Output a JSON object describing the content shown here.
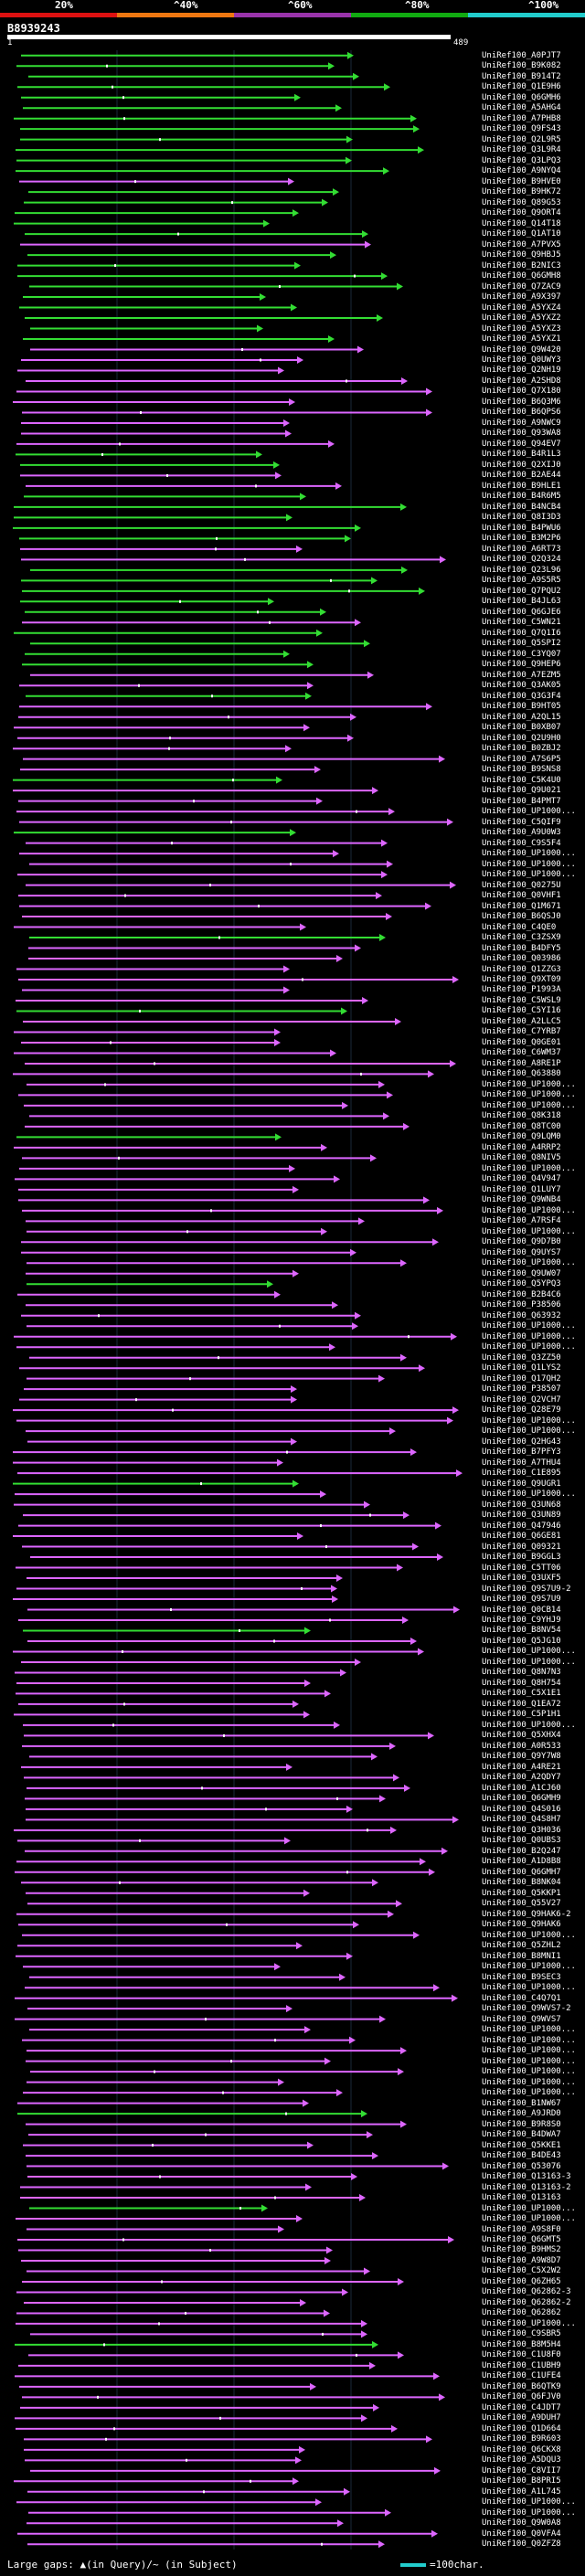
{
  "header": {
    "identity_scale": [
      {
        "label": "20%",
        "color": "#dd1111"
      },
      {
        "label": "^40%",
        "color": "#ee7711"
      },
      {
        "label": "^60%",
        "color": "#9933aa"
      },
      {
        "label": "^80%",
        "color": "#11aa11"
      },
      {
        "label": "^100%",
        "color": "#22cccc"
      }
    ]
  },
  "query": {
    "id": "B8939243",
    "start": "1",
    "end": "489"
  },
  "hits": [
    {
      "id": "UniRef100_A0PJT7",
      "color": "green"
    },
    {
      "id": "UniRef100_B9K082",
      "color": "green"
    },
    {
      "id": "UniRef100_B914T2",
      "color": "green"
    },
    {
      "id": "UniRef100_Q1E9H6",
      "color": "green"
    },
    {
      "id": "UniRef100_Q6GMH6",
      "color": "green"
    },
    {
      "id": "UniRef100_A5AHG4",
      "color": "green"
    },
    {
      "id": "UniRef100_A7PHB8",
      "color": "green"
    },
    {
      "id": "UniRef100_Q9FS43",
      "color": "green"
    },
    {
      "id": "UniRef100_Q2L9R5",
      "color": "green"
    },
    {
      "id": "UniRef100_Q3L9R4",
      "color": "green"
    },
    {
      "id": "UniRef100_Q3LPQ3",
      "color": "green"
    },
    {
      "id": "UniRef100_A9NYQ4",
      "color": "green"
    },
    {
      "id": "UniRef100_B9HVE0",
      "color": "magenta"
    },
    {
      "id": "UniRef100_B9HK72",
      "color": "green"
    },
    {
      "id": "UniRef100_Q89G53",
      "color": "green"
    },
    {
      "id": "UniRef100_Q9ORT4",
      "color": "green"
    },
    {
      "id": "UniRef100_Q14T18",
      "color": "green"
    },
    {
      "id": "UniRef100_Q1AT10",
      "color": "green"
    },
    {
      "id": "UniRef100_A7PVX5",
      "color": "magenta"
    },
    {
      "id": "UniRef100_Q9HBJ5",
      "color": "green"
    },
    {
      "id": "UniRef100_B2NIC3",
      "color": "green"
    },
    {
      "id": "UniRef100_Q6GMH8",
      "color": "green"
    },
    {
      "id": "UniRef100_Q7ZAC9",
      "color": "green"
    },
    {
      "id": "UniRef100_A9X397",
      "color": "green"
    },
    {
      "id": "UniRef100_A5YXZ4",
      "color": "green"
    },
    {
      "id": "UniRef100_A5YXZ2",
      "color": "green"
    },
    {
      "id": "UniRef100_A5YXZ3",
      "color": "green"
    },
    {
      "id": "UniRef100_A5YXZ1",
      "color": "green"
    },
    {
      "id": "UniRef100_Q9W420",
      "color": "magenta"
    },
    {
      "id": "UniRef100_Q0UWY3",
      "color": "magenta"
    },
    {
      "id": "UniRef100_Q2NH19",
      "color": "magenta"
    },
    {
      "id": "UniRef100_A2SHD8",
      "color": "magenta"
    },
    {
      "id": "UniRef100_Q7X180",
      "color": "magenta"
    },
    {
      "id": "UniRef100_B6Q3M6",
      "color": "magenta"
    },
    {
      "id": "UniRef100_B6QPS6",
      "color": "magenta"
    },
    {
      "id": "UniRef100_A9NWC9",
      "color": "magenta"
    },
    {
      "id": "UniRef100_Q93WA8",
      "color": "magenta"
    },
    {
      "id": "UniRef100_Q94EV7",
      "color": "magenta"
    },
    {
      "id": "UniRef100_B4R1L3",
      "color": "green"
    },
    {
      "id": "UniRef100_Q2XIJ0",
      "color": "green"
    },
    {
      "id": "UniRef100_B2AE44",
      "color": "magenta"
    },
    {
      "id": "UniRef100_B9HLE1",
      "color": "magenta"
    },
    {
      "id": "UniRef100_B4R6M5",
      "color": "green"
    },
    {
      "id": "UniRef100_B4NCB4",
      "color": "green"
    },
    {
      "id": "UniRef100_Q8I3D3",
      "color": "green"
    },
    {
      "id": "UniRef100_B4PWU6",
      "color": "green"
    },
    {
      "id": "UniRef100_B3M2P6",
      "color": "green"
    },
    {
      "id": "UniRef100_A6RT73",
      "color": "magenta"
    },
    {
      "id": "UniRef100_Q2Q324",
      "color": "magenta"
    },
    {
      "id": "UniRef100_Q23L96",
      "color": "green"
    },
    {
      "id": "UniRef100_A9S5R5",
      "color": "green"
    },
    {
      "id": "UniRef100_Q7PQU2",
      "color": "green"
    },
    {
      "id": "UniRef100_B4JL63",
      "color": "green"
    },
    {
      "id": "UniRef100_Q6GJE6",
      "color": "green"
    },
    {
      "id": "UniRef100_C5WN21",
      "color": "magenta"
    },
    {
      "id": "UniRef100_Q7Q1I6",
      "color": "green"
    },
    {
      "id": "UniRef100_Q5SPI2",
      "color": "green"
    },
    {
      "id": "UniRef100_C3YQ07",
      "color": "green"
    },
    {
      "id": "UniRef100_Q9HEP6",
      "color": "green"
    },
    {
      "id": "UniRef100_A7EZM5",
      "color": "magenta"
    },
    {
      "id": "UniRef100_Q3AK05",
      "color": "magenta"
    },
    {
      "id": "UniRef100_Q3G3F4",
      "color": "green"
    },
    {
      "id": "UniRef100_B9HT05",
      "color": "magenta"
    },
    {
      "id": "UniRef100_A2QL15",
      "color": "magenta"
    },
    {
      "id": "UniRef100_B0XB07",
      "color": "magenta"
    },
    {
      "id": "UniRef100_Q2U9H0",
      "color": "magenta"
    },
    {
      "id": "UniRef100_B0ZBJ2",
      "color": "magenta"
    },
    {
      "id": "UniRef100_A7S6P5",
      "color": "magenta"
    },
    {
      "id": "UniRef100_B9SNS8",
      "color": "magenta"
    },
    {
      "id": "UniRef100_C5K4U0",
      "color": "green"
    },
    {
      "id": "UniRef100_Q9U021",
      "color": "magenta"
    },
    {
      "id": "UniRef100_B4PMT7",
      "color": "magenta"
    },
    {
      "id": "UniRef100_UP1000...",
      "color": "magenta"
    },
    {
      "id": "UniRef100_C5QIF9",
      "color": "magenta"
    },
    {
      "id": "UniRef100_A9U0W3",
      "color": "green"
    },
    {
      "id": "UniRef100_C9S5F4",
      "color": "magenta"
    },
    {
      "id": "UniRef100_UP1000...",
      "color": "magenta"
    },
    {
      "id": "UniRef100_UP1000...",
      "color": "magenta"
    },
    {
      "id": "UniRef100_UP1000...",
      "color": "magenta"
    },
    {
      "id": "UniRef100_Q0275U",
      "color": "magenta"
    },
    {
      "id": "UniRef100_Q0VHF1",
      "color": "magenta"
    },
    {
      "id": "UniRef100_Q1M671",
      "color": "magenta"
    },
    {
      "id": "UniRef100_B6QSJ0",
      "color": "magenta"
    },
    {
      "id": "UniRef100_C4QE0",
      "color": "magenta"
    },
    {
      "id": "UniRef100_C3ZSX9",
      "color": "green"
    },
    {
      "id": "UniRef100_B4DFY5",
      "color": "magenta"
    },
    {
      "id": "UniRef100_Q03986",
      "color": "magenta"
    },
    {
      "id": "UniRef100_Q1ZZG3",
      "color": "magenta"
    },
    {
      "id": "UniRef100_Q9XT09",
      "color": "magenta"
    },
    {
      "id": "UniRef100_P1993A",
      "color": "magenta"
    },
    {
      "id": "UniRef100_C5WSL9",
      "color": "magenta"
    },
    {
      "id": "UniRef100_C5YI16",
      "color": "green"
    },
    {
      "id": "UniRef100_A2LLC5",
      "color": "magenta"
    },
    {
      "id": "UniRef100_C7YRB7",
      "color": "magenta"
    },
    {
      "id": "UniRef100_Q0GE01",
      "color": "magenta"
    },
    {
      "id": "UniRef100_C6WM37",
      "color": "magenta"
    },
    {
      "id": "UniRef100_A8RE1P",
      "color": "magenta"
    },
    {
      "id": "UniRef100_Q63880",
      "color": "magenta"
    },
    {
      "id": "UniRef100_UP1000...",
      "color": "magenta"
    },
    {
      "id": "UniRef100_UP1000...",
      "color": "magenta"
    },
    {
      "id": "UniRef100_UP1000...",
      "color": "magenta"
    },
    {
      "id": "UniRef100_Q8K318",
      "color": "magenta"
    },
    {
      "id": "UniRef100_Q8TC00",
      "color": "magenta"
    },
    {
      "id": "UniRef100_Q9LQM0",
      "color": "green"
    },
    {
      "id": "UniRef100_A4RRP2",
      "color": "magenta"
    },
    {
      "id": "UniRef100_Q8NIV5",
      "color": "magenta"
    },
    {
      "id": "UniRef100_UP1000...",
      "color": "magenta"
    },
    {
      "id": "UniRef100_Q4V947",
      "color": "magenta"
    },
    {
      "id": "UniRef100_Q1LUY7",
      "color": "magenta"
    },
    {
      "id": "UniRef100_Q9WNB4",
      "color": "magenta"
    },
    {
      "id": "UniRef100_UP1000...",
      "color": "magenta"
    },
    {
      "id": "UniRef100_A7RSF4",
      "color": "magenta"
    },
    {
      "id": "UniRef100_UP1000...",
      "color": "magenta"
    },
    {
      "id": "UniRef100_Q9D7B0",
      "color": "magenta"
    },
    {
      "id": "UniRef100_Q9UYS7",
      "color": "magenta"
    },
    {
      "id": "UniRef100_UP1000...",
      "color": "magenta"
    },
    {
      "id": "UniRef100_Q9UW07",
      "color": "magenta"
    },
    {
      "id": "UniRef100_Q5YPQ3",
      "color": "green"
    },
    {
      "id": "UniRef100_B2B4C6",
      "color": "magenta"
    },
    {
      "id": "UniRef100_P38506",
      "color": "magenta"
    },
    {
      "id": "UniRef100_Q63932",
      "color": "magenta"
    },
    {
      "id": "UniRef100_UP1000...",
      "color": "magenta"
    },
    {
      "id": "UniRef100_UP1000...",
      "color": "magenta"
    },
    {
      "id": "UniRef100_UP1000...",
      "color": "magenta"
    },
    {
      "id": "UniRef100_Q3ZZ50",
      "color": "magenta"
    },
    {
      "id": "UniRef100_Q1LYS2",
      "color": "magenta"
    },
    {
      "id": "UniRef100_Q17QH2",
      "color": "magenta"
    },
    {
      "id": "UniRef100_P38507",
      "color": "magenta"
    },
    {
      "id": "UniRef100_Q2VCH7",
      "color": "magenta"
    },
    {
      "id": "UniRef100_Q28E79",
      "color": "magenta"
    },
    {
      "id": "UniRef100_UP1000...",
      "color": "magenta"
    },
    {
      "id": "UniRef100_UP1000...",
      "color": "magenta"
    },
    {
      "id": "UniRef100_Q2HG43",
      "color": "magenta"
    },
    {
      "id": "UniRef100_B7PFY3",
      "color": "magenta"
    },
    {
      "id": "UniRef100_A7THU4",
      "color": "magenta"
    },
    {
      "id": "UniRef100_C1E895",
      "color": "magenta"
    },
    {
      "id": "UniRef100_Q9UGR1",
      "color": "green"
    },
    {
      "id": "UniRef100_UP1000...",
      "color": "magenta"
    },
    {
      "id": "UniRef100_Q3UN68",
      "color": "magenta"
    },
    {
      "id": "UniRef100_Q3UN89",
      "color": "magenta"
    },
    {
      "id": "UniRef100_Q47946",
      "color": "magenta"
    },
    {
      "id": "UniRef100_Q6GE81",
      "color": "magenta"
    },
    {
      "id": "UniRef100_Q09321",
      "color": "magenta"
    },
    {
      "id": "UniRef100_B9GGL3",
      "color": "magenta"
    },
    {
      "id": "UniRef100_C5TT06",
      "color": "magenta"
    },
    {
      "id": "UniRef100_Q3UXF5",
      "color": "magenta"
    },
    {
      "id": "UniRef100_Q9S7U9-2",
      "color": "magenta"
    },
    {
      "id": "UniRef100_Q9S7U9",
      "color": "magenta"
    },
    {
      "id": "UniRef100_Q0CB14",
      "color": "magenta"
    },
    {
      "id": "UniRef100_C9YHJ9",
      "color": "magenta"
    },
    {
      "id": "UniRef100_B8NV54",
      "color": "green"
    },
    {
      "id": "UniRef100_Q5JG10",
      "color": "magenta"
    },
    {
      "id": "UniRef100_UP1000...",
      "color": "magenta"
    },
    {
      "id": "UniRef100_UP1000...",
      "color": "magenta"
    },
    {
      "id": "UniRef100_Q8N7N3",
      "color": "magenta"
    },
    {
      "id": "UniRef100_Q8H754",
      "color": "magenta"
    },
    {
      "id": "UniRef100_C5X1E1",
      "color": "magenta"
    },
    {
      "id": "UniRef100_Q1EA72",
      "color": "magenta"
    },
    {
      "id": "UniRef100_C5P1H1",
      "color": "magenta"
    },
    {
      "id": "UniRef100_UP1000...",
      "color": "magenta"
    },
    {
      "id": "UniRef100_Q5XHX4",
      "color": "magenta"
    },
    {
      "id": "UniRef100_A0R533",
      "color": "magenta"
    },
    {
      "id": "UniRef100_Q9Y7W8",
      "color": "magenta"
    },
    {
      "id": "UniRef100_A4RE21",
      "color": "magenta"
    },
    {
      "id": "UniRef100_A2QDY7",
      "color": "magenta"
    },
    {
      "id": "UniRef100_A1CJ60",
      "color": "magenta"
    },
    {
      "id": "UniRef100_Q6GMH9",
      "color": "magenta"
    },
    {
      "id": "UniRef100_Q4S016",
      "color": "magenta"
    },
    {
      "id": "UniRef100_Q4S8H7",
      "color": "magenta"
    },
    {
      "id": "UniRef100_Q3H036",
      "color": "magenta"
    },
    {
      "id": "UniRef100_Q0UBS3",
      "color": "magenta"
    },
    {
      "id": "UniRef100_B2Q247",
      "color": "magenta"
    },
    {
      "id": "UniRef100_A1D8B8",
      "color": "magenta"
    },
    {
      "id": "UniRef100_Q6GMH7",
      "color": "magenta"
    },
    {
      "id": "UniRef100_B8NK04",
      "color": "magenta"
    },
    {
      "id": "UniRef100_Q5KKP1",
      "color": "magenta"
    },
    {
      "id": "UniRef100_Q55V27",
      "color": "magenta"
    },
    {
      "id": "UniRef100_Q9HAK6-2",
      "color": "magenta"
    },
    {
      "id": "UniRef100_Q9HAK6",
      "color": "magenta"
    },
    {
      "id": "UniRef100_UP1000...",
      "color": "magenta"
    },
    {
      "id": "UniRef100_Q5ZHL2",
      "color": "magenta"
    },
    {
      "id": "UniRef100_B8MNI1",
      "color": "magenta"
    },
    {
      "id": "UniRef100_UP1000...",
      "color": "magenta"
    },
    {
      "id": "UniRef100_B9SEC3",
      "color": "magenta"
    },
    {
      "id": "UniRef100_UP1000...",
      "color": "magenta"
    },
    {
      "id": "UniRef100_C4Q7Q1",
      "color": "magenta"
    },
    {
      "id": "UniRef100_Q9WVS7-2",
      "color": "magenta"
    },
    {
      "id": "UniRef100_Q9WVS7",
      "color": "magenta"
    },
    {
      "id": "UniRef100_UP1000...",
      "color": "magenta"
    },
    {
      "id": "UniRef100_UP1000...",
      "color": "magenta"
    },
    {
      "id": "UniRef100_UP1000...",
      "color": "magenta"
    },
    {
      "id": "UniRef100_UP1000...",
      "color": "magenta"
    },
    {
      "id": "UniRef100_UP1000...",
      "color": "magenta"
    },
    {
      "id": "UniRef100_UP1000...",
      "color": "magenta"
    },
    {
      "id": "UniRef100_UP1000...",
      "color": "magenta"
    },
    {
      "id": "UniRef100_B1NW67",
      "color": "magenta"
    },
    {
      "id": "UniRef100_A9JRD0",
      "color": "green"
    },
    {
      "id": "UniRef100_B9R8S0",
      "color": "magenta"
    },
    {
      "id": "UniRef100_B4DWA7",
      "color": "magenta"
    },
    {
      "id": "UniRef100_Q5KKE1",
      "color": "magenta"
    },
    {
      "id": "UniRef100_B4DE43",
      "color": "magenta"
    },
    {
      "id": "UniRef100_Q53076",
      "color": "magenta"
    },
    {
      "id": "UniRef100_Q13163-3",
      "color": "magenta"
    },
    {
      "id": "UniRef100_Q13163-2",
      "color": "magenta"
    },
    {
      "id": "UniRef100_Q13163",
      "color": "magenta"
    },
    {
      "id": "UniRef100_UP1000...",
      "color": "green"
    },
    {
      "id": "UniRef100_UP1000...",
      "color": "magenta"
    },
    {
      "id": "UniRef100_A9S8F0",
      "color": "magenta"
    },
    {
      "id": "UniRef100_Q6GMT5",
      "color": "magenta"
    },
    {
      "id": "UniRef100_B9HMS2",
      "color": "magenta"
    },
    {
      "id": "UniRef100_A9W8D7",
      "color": "magenta"
    },
    {
      "id": "UniRef100_C5X2W2",
      "color": "magenta"
    },
    {
      "id": "UniRef100_Q6ZH65",
      "color": "magenta"
    },
    {
      "id": "UniRef100_Q62862-3",
      "color": "magenta"
    },
    {
      "id": "UniRef100_Q62862-2",
      "color": "magenta"
    },
    {
      "id": "UniRef100_Q62862",
      "color": "magenta"
    },
    {
      "id": "UniRef100_UP1000...",
      "color": "magenta"
    },
    {
      "id": "UniRef100_C9SBR5",
      "color": "magenta"
    },
    {
      "id": "UniRef100_B8M5H4",
      "color": "green"
    },
    {
      "id": "UniRef100_C1U8F0",
      "color": "magenta"
    },
    {
      "id": "UniRef100_C1UBH9",
      "color": "magenta"
    },
    {
      "id": "UniRef100_C1UFE4",
      "color": "magenta"
    },
    {
      "id": "UniRef100_B6QTK9",
      "color": "magenta"
    },
    {
      "id": "UniRef100_Q6FJV0",
      "color": "magenta"
    },
    {
      "id": "UniRef100_C4JDT7",
      "color": "magenta"
    },
    {
      "id": "UniRef100_A9DUH7",
      "color": "magenta"
    },
    {
      "id": "UniRef100_Q1D664",
      "color": "magenta"
    },
    {
      "id": "UniRef100_B9R603",
      "color": "magenta"
    },
    {
      "id": "UniRef100_Q6CKX8",
      "color": "magenta"
    },
    {
      "id": "UniRef100_A5DQU3",
      "color": "magenta"
    },
    {
      "id": "UniRef100_C8VII7",
      "color": "magenta"
    },
    {
      "id": "UniRef100_B8PRI5",
      "color": "magenta"
    },
    {
      "id": "UniRef100_A1L745",
      "color": "magenta"
    },
    {
      "id": "UniRef100_UP1000...",
      "color": "magenta"
    },
    {
      "id": "UniRef100_UP1000...",
      "color": "magenta"
    },
    {
      "id": "UniRef100_Q9W0A8",
      "color": "magenta"
    },
    {
      "id": "UniRef100_Q0VFA4",
      "color": "magenta"
    },
    {
      "id": "UniRef100_Q0ZFZ8",
      "color": "magenta"
    }
  ],
  "footer": {
    "gaps_text": "Large gaps: ▲(in Query)/~ (in Subject)",
    "scale_text": "=100char."
  },
  "colors": {
    "green": "#33dd33",
    "magenta": "#dd66ff",
    "background": "#000000",
    "query_bar": "#ffffff"
  }
}
